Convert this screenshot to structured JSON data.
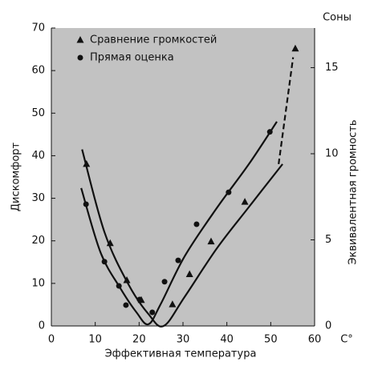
{
  "chart_data": {
    "type": "scatter",
    "y_label": "Дискомфорт",
    "y2_label": "Эквивалентная громность",
    "y2_unit": "Соны",
    "x_label": "Эффективная температура",
    "x_unit": "C°",
    "xlim": [
      0,
      60
    ],
    "xticks": [
      0,
      10,
      20,
      30,
      40,
      50,
      60
    ],
    "ylim": [
      0,
      70
    ],
    "yticks": [
      0,
      10,
      20,
      30,
      40,
      50,
      60,
      70
    ],
    "y2lim": [
      0,
      17.3
    ],
    "y2ticks": [
      0,
      5,
      10,
      15
    ],
    "series": [
      {
        "name": "Сравнение громкостей",
        "marker": "triangle",
        "color": "#111111",
        "axis": "y2",
        "x": [
          8.0,
          13.4,
          17.2,
          20.5,
          27.6,
          31.5,
          36.4,
          44.1,
          55.6
        ],
        "values": [
          9.4,
          4.8,
          2.65,
          1.5,
          1.25,
          3.0,
          4.9,
          7.2,
          16.1
        ]
      },
      {
        "name": "Прямая оценка",
        "marker": "circle",
        "color": "#111111",
        "x": [
          7.9,
          12.1,
          15.4,
          17.0,
          20.1,
          23.0,
          25.8,
          28.9,
          33.1,
          40.4,
          49.8
        ],
        "values": [
          28.6,
          15.1,
          9.4,
          4.9,
          6.2,
          3.2,
          10.4,
          15.4,
          23.9,
          31.4,
          45.6
        ]
      }
    ],
    "curves": [
      {
        "axis": "y2",
        "color": "#111111",
        "dashed": false,
        "x": [
          7.0,
          12.1,
          17.6,
          22.1,
          25.6,
          30.4,
          37.7,
          45.0,
          52.7
        ],
        "values": [
          10.25,
          5.45,
          2.4,
          0.7,
          0,
          1.7,
          4.5,
          6.9,
          9.4
        ]
      },
      {
        "axis": "y2",
        "color": "#111111",
        "dashed": true,
        "x": [
          51.8,
          55.1
        ],
        "values": [
          9.4,
          15.6
        ]
      },
      {
        "color": "#111111",
        "dashed": false,
        "x": [
          6.8,
          11.2,
          15.7,
          19.4,
          22.1,
          24.9,
          30.4,
          37.7,
          45.0,
          51.4
        ],
        "values": [
          32.4,
          17.3,
          8.9,
          3.2,
          0.4,
          5.1,
          16.4,
          27.7,
          38.0,
          48.0
        ]
      }
    ]
  }
}
